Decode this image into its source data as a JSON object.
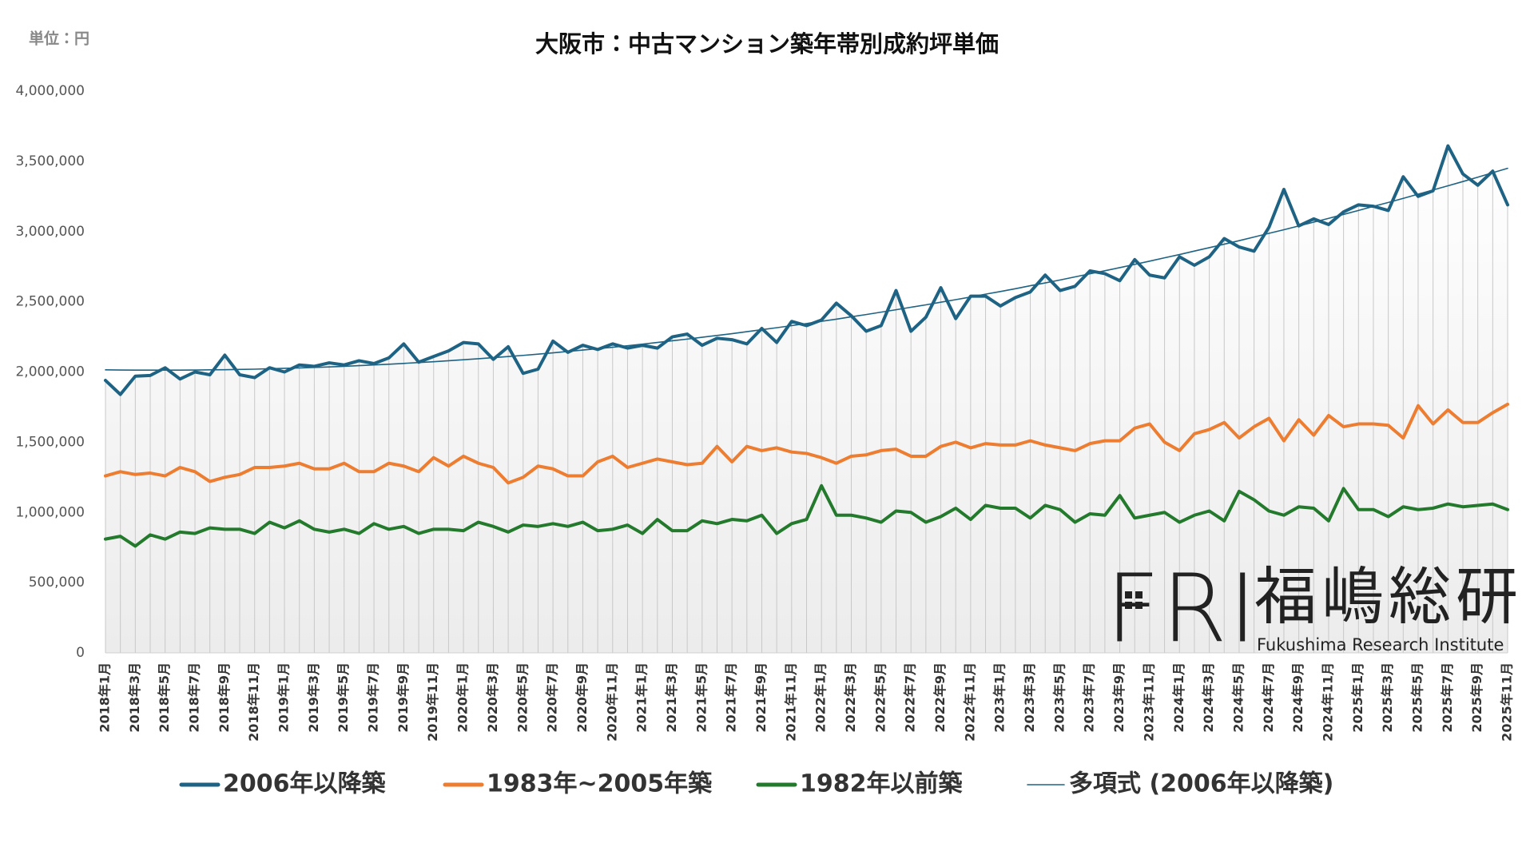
{
  "chart_data": {
    "type": "line",
    "title": "大阪市：中古マンション築年帯別成約坪単価",
    "unit": "単位：円",
    "categories": [
      "2018年1月",
      null,
      "2018年3月",
      null,
      "2018年5月",
      null,
      "2018年7月",
      null,
      "2018年9月",
      null,
      "2018年11月",
      null,
      "2019年1月",
      null,
      "2019年3月",
      null,
      "2019年5月",
      null,
      "2019年7月",
      null,
      "2019年9月",
      null,
      "2019年11月",
      null,
      "2020年1月",
      null,
      "2020年3月",
      null,
      "2020年5月",
      null,
      "2020年7月",
      null,
      "2020年9月",
      null,
      "2020年11月",
      null,
      "2021年1月",
      null,
      "2021年3月",
      null,
      "2021年5月",
      null,
      "2021年7月",
      null,
      "2021年9月",
      null,
      "2021年11月",
      null,
      "2022年1月",
      null,
      "2022年3月",
      null,
      "2022年5月",
      null,
      "2022年7月",
      null,
      "2022年9月",
      null,
      "2022年11月",
      null,
      "2023年1月",
      null,
      "2023年3月",
      null,
      "2023年5月",
      null,
      "2023年7月",
      null,
      "2023年9月",
      null,
      "2023年11月",
      null,
      "2024年1月",
      null,
      "2024年3月",
      null,
      "2024年5月",
      null,
      "2024年7月",
      null,
      "2024年9月",
      null,
      "2024年11月",
      null,
      "2025年1月",
      null,
      "2025年3月",
      null,
      "2025年5月",
      null,
      "2025年7月",
      null,
      "2025年9月",
      null,
      "2025年11月"
    ],
    "series": [
      {
        "name": "2006年以降築",
        "color": "#1e6384",
        "values": [
          1940000,
          1840000,
          1970000,
          1975000,
          2030000,
          1950000,
          2000000,
          1980000,
          2120000,
          1980000,
          1960000,
          2030000,
          2000000,
          2050000,
          2040000,
          2065000,
          2050000,
          2080000,
          2060000,
          2100000,
          2200000,
          2070000,
          2110000,
          2150000,
          2210000,
          2200000,
          2090000,
          2180000,
          1990000,
          2020000,
          2220000,
          2140000,
          2190000,
          2160000,
          2200000,
          2170000,
          2190000,
          2170000,
          2250000,
          2270000,
          2190000,
          2240000,
          2230000,
          2200000,
          2310000,
          2210000,
          2360000,
          2330000,
          2370000,
          2490000,
          2400000,
          2290000,
          2330000,
          2580000,
          2290000,
          2390000,
          2600000,
          2380000,
          2540000,
          2540000,
          2470000,
          2530000,
          2570000,
          2690000,
          2580000,
          2610000,
          2720000,
          2700000,
          2650000,
          2800000,
          2690000,
          2670000,
          2820000,
          2760000,
          2820000,
          2950000,
          2890000,
          2860000,
          3030000,
          3300000,
          3040000,
          3090000,
          3050000,
          3140000,
          3190000,
          3180000,
          3150000,
          3390000,
          3250000,
          3290000,
          3610000,
          3410000,
          3330000,
          3430000,
          3190000
        ]
      },
      {
        "name": "1983年~2005年築",
        "color": "#ed7d31",
        "values": [
          1260000,
          1290000,
          1270000,
          1280000,
          1260000,
          1320000,
          1290000,
          1220000,
          1250000,
          1270000,
          1320000,
          1320000,
          1330000,
          1350000,
          1310000,
          1310000,
          1350000,
          1290000,
          1290000,
          1350000,
          1330000,
          1290000,
          1390000,
          1330000,
          1400000,
          1350000,
          1320000,
          1210000,
          1250000,
          1330000,
          1310000,
          1260000,
          1260000,
          1360000,
          1400000,
          1320000,
          1350000,
          1380000,
          1360000,
          1340000,
          1350000,
          1470000,
          1360000,
          1470000,
          1440000,
          1460000,
          1430000,
          1420000,
          1390000,
          1350000,
          1400000,
          1410000,
          1440000,
          1450000,
          1400000,
          1400000,
          1470000,
          1500000,
          1460000,
          1490000,
          1480000,
          1480000,
          1510000,
          1480000,
          1460000,
          1440000,
          1490000,
          1510000,
          1510000,
          1600000,
          1630000,
          1500000,
          1440000,
          1560000,
          1590000,
          1640000,
          1530000,
          1610000,
          1670000,
          1510000,
          1660000,
          1550000,
          1690000,
          1610000,
          1630000,
          1630000,
          1620000,
          1530000,
          1760000,
          1630000,
          1730000,
          1640000,
          1640000,
          1710000,
          1770000
        ]
      },
      {
        "name": "1982年以前築",
        "color": "#237a2c",
        "values": [
          810000,
          830000,
          760000,
          840000,
          810000,
          860000,
          850000,
          890000,
          880000,
          880000,
          850000,
          930000,
          890000,
          940000,
          880000,
          860000,
          880000,
          850000,
          920000,
          880000,
          900000,
          850000,
          880000,
          880000,
          870000,
          930000,
          900000,
          860000,
          910000,
          900000,
          920000,
          900000,
          930000,
          870000,
          880000,
          910000,
          850000,
          950000,
          870000,
          870000,
          940000,
          920000,
          950000,
          940000,
          980000,
          850000,
          920000,
          950000,
          1190000,
          980000,
          980000,
          960000,
          930000,
          1010000,
          1000000,
          930000,
          970000,
          1030000,
          950000,
          1050000,
          1030000,
          1030000,
          960000,
          1050000,
          1020000,
          930000,
          990000,
          980000,
          1120000,
          960000,
          980000,
          1000000,
          930000,
          980000,
          1010000,
          940000,
          1150000,
          1090000,
          1010000,
          980000,
          1040000,
          1030000,
          940000,
          1170000,
          1020000,
          1020000,
          970000,
          1040000,
          1020000,
          1030000,
          1060000,
          1040000,
          1050000,
          1060000,
          1020000
        ]
      },
      {
        "name": "多項式 (2006年以降築)",
        "color": "#1e6384",
        "trend": true,
        "values": [
          2015000,
          2014000,
          2013000,
          2013000,
          2013000,
          2013000,
          2014000,
          2015000,
          2016000,
          2018000,
          2020000,
          2023000,
          2026000,
          2029000,
          2032000,
          2036000,
          2040000,
          2045000,
          2050000,
          2055000,
          2061000,
          2067000,
          2073000,
          2080000,
          2087000,
          2094000,
          2102000,
          2110000,
          2118000,
          2127000,
          2136000,
          2146000,
          2156000,
          2166000,
          2176000,
          2187000,
          2198000,
          2210000,
          2222000,
          2234000,
          2247000,
          2260000,
          2273000,
          2287000,
          2301000,
          2315000,
          2330000,
          2345000,
          2361000,
          2376000,
          2393000,
          2409000,
          2426000,
          2443000,
          2461000,
          2478000,
          2497000,
          2515000,
          2534000,
          2554000,
          2573000,
          2593000,
          2614000,
          2634000,
          2655000,
          2677000,
          2699000,
          2721000,
          2743000,
          2766000,
          2789000,
          2813000,
          2836000,
          2861000,
          2885000,
          2910000,
          2935000,
          2961000,
          2987000,
          3013000,
          3040000,
          3067000,
          3094000,
          3122000,
          3150000,
          3179000,
          3207000,
          3236000,
          3266000,
          3296000,
          3326000,
          3356000,
          3387000,
          3419000,
          3450000
        ]
      }
    ],
    "ylim": [
      0,
      4000000
    ],
    "yticks": [
      0,
      {
        "value": 500000,
        "label": "500,000"
      },
      {
        "value": 1000000,
        "label": "1,000,000"
      },
      {
        "value": 1500000,
        "label": "1,500,000"
      },
      {
        "value": 2000000,
        "label": "2,000,000"
      },
      {
        "value": 2500000,
        "label": "2,500,000"
      },
      {
        "value": 3000000,
        "label": "3,000,000"
      },
      {
        "value": 3500000,
        "label": "3,500,000"
      },
      {
        "value": 4000000,
        "label": "4,000,000"
      }
    ],
    "grid": false,
    "legend": "bottom",
    "drop_lines": true
  },
  "logo": {
    "mark": "FRI",
    "name": "福嶋総研",
    "english": "Fukushima Research Institute"
  }
}
